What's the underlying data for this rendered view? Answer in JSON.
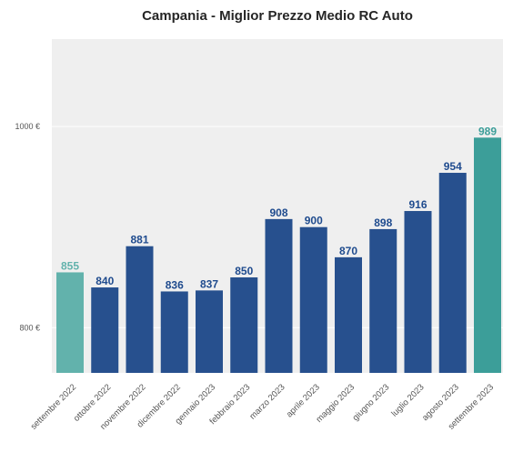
{
  "chart_data": {
    "type": "bar",
    "title": "Campania - Miglior Prezzo Medio RC Auto",
    "xlabel": "",
    "ylabel": "",
    "categories": [
      "settembre 2022",
      "ottobre 2022",
      "novembre 2022",
      "dicembre 2022",
      "gennaio 2023",
      "febbraio 2023",
      "marzo 2023",
      "aprile 2023",
      "maggio 2023",
      "giugno 2023",
      "luglio 2023",
      "agosto 2023",
      "settembre 2023"
    ],
    "values": [
      855,
      840,
      881,
      836,
      837,
      850,
      908,
      900,
      870,
      898,
      916,
      954,
      989
    ],
    "data_labels": [
      "855",
      "840",
      "881",
      "836",
      "837",
      "850",
      "908",
      "900",
      "870",
      "898",
      "916",
      "954",
      "989"
    ],
    "yticks": [
      800,
      1000
    ],
    "ytick_labels": [
      "800 €",
      "1000 €"
    ],
    "ylim": [
      755,
      1087
    ],
    "grid": true,
    "legend": "none",
    "colors": {
      "default_bar": "#27508e",
      "first_bar": "#62b2ac",
      "last_bar": "#3c9e99",
      "default_label": "#1f4b8e",
      "first_label": "#62b2ac",
      "last_label": "#3c9e99",
      "plot_background": "#efefef",
      "grid": "#ffffff"
    }
  }
}
